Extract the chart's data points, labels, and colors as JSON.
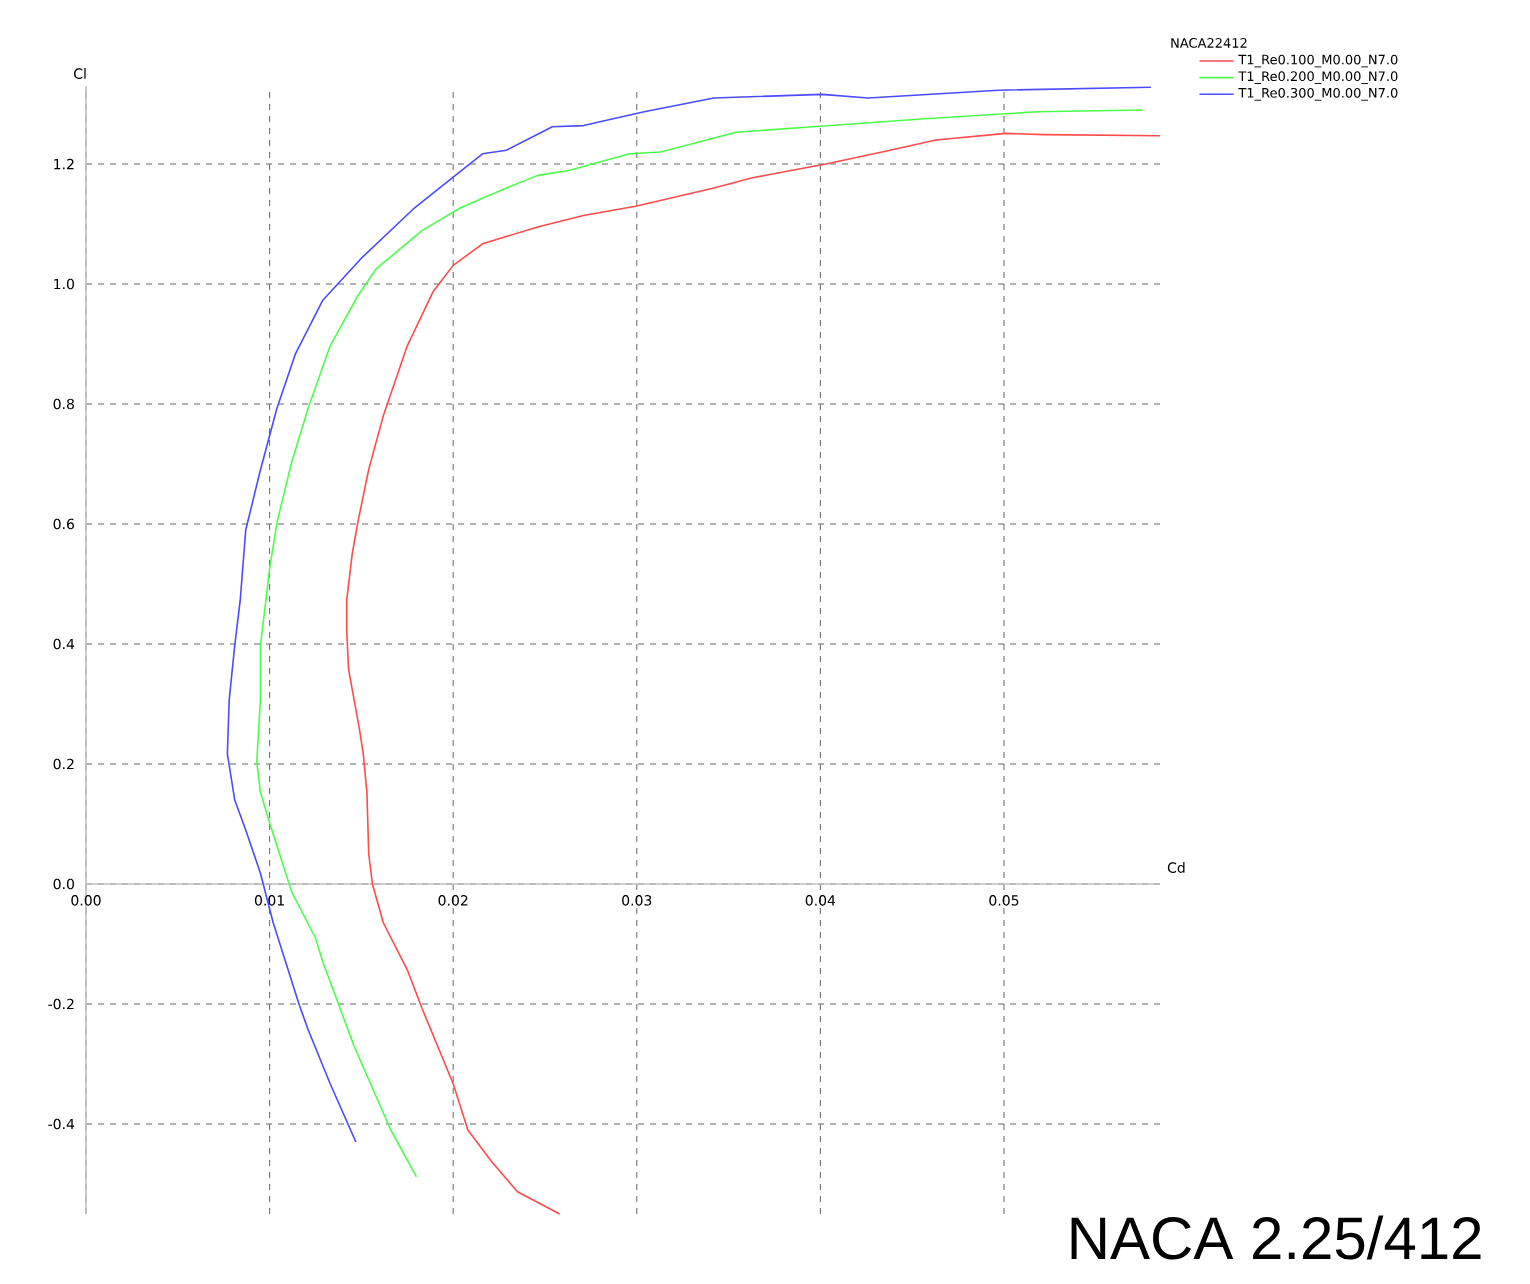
{
  "chart_data": {
    "type": "line",
    "xlabel": "Cd",
    "ylabel": "Cl",
    "legend_title": "NACA22412",
    "legend": "top right",
    "grid": true,
    "xlim": [
      0,
      0.0585
    ],
    "ylim": [
      -0.55,
      1.33
    ],
    "xticks": [
      {
        "value": 0,
        "label": "0.00"
      },
      0.01,
      0.02,
      0.03,
      0.04,
      0.05
    ],
    "yticks": [
      -0.4,
      -0.2,
      {
        "value": 0,
        "label": "0.0"
      },
      0.2,
      0.4,
      0.6,
      0.8,
      {
        "value": 1,
        "label": "1.0"
      },
      1.2
    ],
    "annotations": [
      "NACA 2.25/412"
    ],
    "series": [
      {
        "name": "T1_Re0.100_M0.00_N7.0",
        "color": "#ff4b4b",
        "x": [
          0.0258,
          0.0235,
          0.0221,
          0.0208,
          0.02,
          0.0183,
          0.0175,
          0.0162,
          0.0156,
          0.0154,
          0.0153,
          0.0151,
          0.0149,
          0.0143,
          0.0142,
          0.0142,
          0.0145,
          0.0148,
          0.0154,
          0.0162,
          0.0175,
          0.0189,
          0.02,
          0.0216,
          0.0246,
          0.0271,
          0.03,
          0.0342,
          0.0363,
          0.0384,
          0.0403,
          0.0438,
          0.0463,
          0.0501,
          0.0522,
          0.0585
        ],
        "values": [
          -0.55,
          -0.513,
          -0.463,
          -0.41,
          -0.333,
          -0.207,
          -0.143,
          -0.065,
          0.0,
          0.05,
          0.153,
          0.217,
          0.257,
          0.358,
          0.423,
          0.473,
          0.55,
          0.602,
          0.691,
          0.781,
          0.897,
          0.987,
          1.031,
          1.067,
          1.095,
          1.114,
          1.13,
          1.16,
          1.177,
          1.189,
          1.2,
          1.223,
          1.24,
          1.251,
          1.249,
          1.247
        ]
      },
      {
        "name": "T1_Re0.200_M0.00_N7.0",
        "color": "#4bff4b",
        "x": [
          0.018,
          0.0166,
          0.0146,
          0.0129,
          0.0125,
          0.0112,
          0.01,
          0.0095,
          0.0093,
          0.0095,
          0.0095,
          0.0098,
          0.01,
          0.0104,
          0.0112,
          0.0121,
          0.0133,
          0.0148,
          0.0158,
          0.0183,
          0.0204,
          0.0229,
          0.0246,
          0.0263,
          0.0296,
          0.0313,
          0.0354,
          0.0396,
          0.0455,
          0.0518,
          0.0576
        ],
        "values": [
          -0.488,
          -0.41,
          -0.27,
          -0.13,
          -0.09,
          -0.013,
          0.102,
          0.153,
          0.203,
          0.307,
          0.397,
          0.473,
          0.525,
          0.602,
          0.703,
          0.793,
          0.897,
          0.98,
          1.025,
          1.089,
          1.127,
          1.16,
          1.181,
          1.189,
          1.217,
          1.22,
          1.253,
          1.262,
          1.275,
          1.287,
          1.29
        ]
      },
      {
        "name": "T1_Re0.300_M0.00_N7.0",
        "color": "#4b4bff",
        "x": [
          0.0147,
          0.0133,
          0.0121,
          0.0116,
          0.0102,
          0.0095,
          0.0087,
          0.0081,
          0.0077,
          0.0078,
          0.0081,
          0.0084,
          0.0087,
          0.0095,
          0.0104,
          0.0114,
          0.0129,
          0.015,
          0.0179,
          0.02,
          0.0216,
          0.0229,
          0.0254,
          0.0271,
          0.0304,
          0.0342,
          0.0401,
          0.0426,
          0.0497,
          0.058
        ],
        "values": [
          -0.43,
          -0.333,
          -0.243,
          -0.2,
          -0.065,
          0.018,
          0.09,
          0.14,
          0.217,
          0.307,
          0.397,
          0.473,
          0.59,
          0.69,
          0.793,
          0.883,
          0.973,
          1.043,
          1.127,
          1.178,
          1.217,
          1.223,
          1.262,
          1.264,
          1.287,
          1.31,
          1.316,
          1.31,
          1.323,
          1.328
        ]
      }
    ]
  }
}
